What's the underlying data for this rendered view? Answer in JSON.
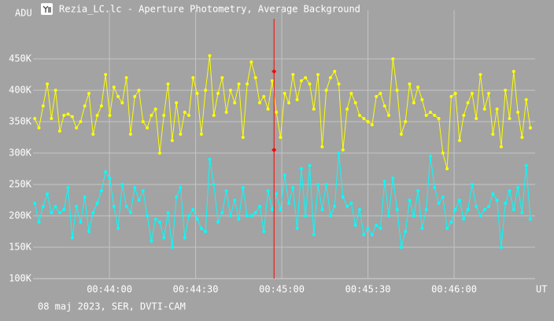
{
  "chart_data": {
    "type": "line",
    "title": "Rezia_LC.lc - Aperture Photometry, Average Background",
    "y_label": "ADU",
    "x_label": "UT",
    "footer": "08 maj 2023, SER, DVTI-CAM",
    "xlim": [
      2613.4,
      2788.2
    ],
    "xticks": [
      {
        "value": 2640,
        "label": "00:44:00"
      },
      {
        "value": 2670,
        "label": "00:44:30"
      },
      {
        "value": 2700,
        "label": "00:45:00"
      },
      {
        "value": 2730,
        "label": "00:45:30"
      },
      {
        "value": 2760,
        "label": "00:46:00"
      }
    ],
    "ylim": [
      100000,
      527500
    ],
    "yticks": [
      {
        "value": 100000,
        "label": "100K"
      },
      {
        "value": 150000,
        "label": "150K"
      },
      {
        "value": 200000,
        "label": "200K"
      },
      {
        "value": 250000,
        "label": "250K"
      },
      {
        "value": 300000,
        "label": "300K"
      },
      {
        "value": 350000,
        "label": "350K"
      },
      {
        "value": 400000,
        "label": "400K"
      },
      {
        "value": 450000,
        "label": "450K"
      }
    ],
    "grid": true,
    "x": [
      2614,
      2615.45,
      2616.9,
      2618.35,
      2619.8,
      2621.25,
      2622.7,
      2624.15,
      2625.6,
      2627.05,
      2628.5,
      2629.95,
      2631.4,
      2632.85,
      2634.3,
      2635.75,
      2637.2,
      2638.65,
      2640.1,
      2641.55,
      2643,
      2644.45,
      2645.9,
      2647.35,
      2648.8,
      2650.25,
      2651.7,
      2653.15,
      2654.6,
      2656.05,
      2657.5,
      2658.95,
      2660.4,
      2661.85,
      2663.3,
      2664.75,
      2666.2,
      2667.65,
      2669.1,
      2670.55,
      2672,
      2673.45,
      2674.9,
      2676.35,
      2677.8,
      2679.25,
      2680.7,
      2682.15,
      2683.6,
      2685.05,
      2686.5,
      2687.95,
      2689.4,
      2690.85,
      2692.3,
      2693.75,
      2695.2,
      2696.65,
      2698.1,
      2699.55,
      2701,
      2702.45,
      2703.9,
      2705.35,
      2706.8,
      2708.25,
      2709.7,
      2711.15,
      2712.6,
      2714.05,
      2715.5,
      2716.95,
      2718.4,
      2719.85,
      2721.3,
      2722.75,
      2724.2,
      2725.65,
      2727.1,
      2728.55,
      2730,
      2731.45,
      2732.9,
      2734.35,
      2735.8,
      2737.25,
      2738.7,
      2740.15,
      2741.6,
      2743.05,
      2744.5,
      2745.95,
      2747.4,
      2748.85,
      2750.3,
      2751.75,
      2753.2,
      2754.65,
      2756.1,
      2757.55,
      2759,
      2760.45,
      2761.9,
      2763.35,
      2764.8,
      2766.25,
      2767.7,
      2769.15,
      2770.6,
      2772.05,
      2773.5,
      2774.95,
      2776.4,
      2777.85,
      2779.3,
      2780.75,
      2782.2,
      2783.65,
      2785.1,
      2786.55
    ],
    "series": [
      {
        "color": "#ffff00",
        "values": [
          355000,
          340000,
          375000,
          410000,
          355000,
          400000,
          335000,
          360000,
          362000,
          358000,
          340000,
          350000,
          375000,
          395000,
          330000,
          360000,
          375000,
          425000,
          360000,
          405000,
          390000,
          380000,
          420000,
          330000,
          390000,
          400000,
          350000,
          340000,
          360000,
          370000,
          300000,
          360000,
          410000,
          320000,
          380000,
          330000,
          365000,
          360000,
          420000,
          395000,
          330000,
          400000,
          455000,
          360000,
          395000,
          420000,
          365000,
          400000,
          380000,
          410000,
          325000,
          410000,
          445000,
          420000,
          380000,
          390000,
          370000,
          415000,
          365000,
          325000,
          395000,
          380000,
          425000,
          385000,
          415000,
          420000,
          410000,
          370000,
          425000,
          310000,
          400000,
          420000,
          430000,
          410000,
          305000,
          370000,
          395000,
          380000,
          360000,
          355000,
          350000,
          345000,
          390000,
          395000,
          375000,
          360000,
          450000,
          400000,
          330000,
          350000,
          410000,
          380000,
          405000,
          385000,
          360000,
          365000,
          360000,
          355000,
          300000,
          275000,
          390000,
          395000,
          320000,
          360000,
          380000,
          395000,
          355000,
          425000,
          370000,
          395000,
          330000,
          370000,
          310000,
          400000,
          355000,
          430000,
          365000,
          325000,
          385000,
          340000
        ]
      },
      {
        "color": "#00ffff",
        "values": [
          220000,
          190000,
          215000,
          235000,
          205000,
          215000,
          205000,
          210000,
          245000,
          165000,
          215000,
          190000,
          230000,
          175000,
          205000,
          220000,
          240000,
          270000,
          260000,
          215000,
          180000,
          250000,
          215000,
          205000,
          245000,
          225000,
          240000,
          200000,
          160000,
          195000,
          190000,
          165000,
          205000,
          150000,
          230000,
          245000,
          165000,
          200000,
          210000,
          195000,
          180000,
          175000,
          290000,
          250000,
          190000,
          205000,
          240000,
          200000,
          225000,
          195000,
          245000,
          200000,
          200000,
          205000,
          215000,
          175000,
          240000,
          210000,
          235000,
          210000,
          265000,
          220000,
          245000,
          180000,
          275000,
          200000,
          280000,
          170000,
          250000,
          210000,
          250000,
          200000,
          215000,
          300000,
          230000,
          215000,
          220000,
          185000,
          210000,
          170000,
          180000,
          170000,
          185000,
          180000,
          255000,
          200000,
          260000,
          210000,
          150000,
          175000,
          225000,
          200000,
          240000,
          180000,
          210000,
          295000,
          245000,
          220000,
          230000,
          180000,
          190000,
          210000,
          225000,
          195000,
          210000,
          250000,
          215000,
          200000,
          210000,
          215000,
          235000,
          225000,
          150000,
          220000,
          240000,
          210000,
          245000,
          205000,
          280000,
          195000
        ]
      }
    ],
    "cursor": {
      "x": 2697.3,
      "values": [
        430000,
        305000
      ],
      "color": "#ff0000"
    }
  }
}
